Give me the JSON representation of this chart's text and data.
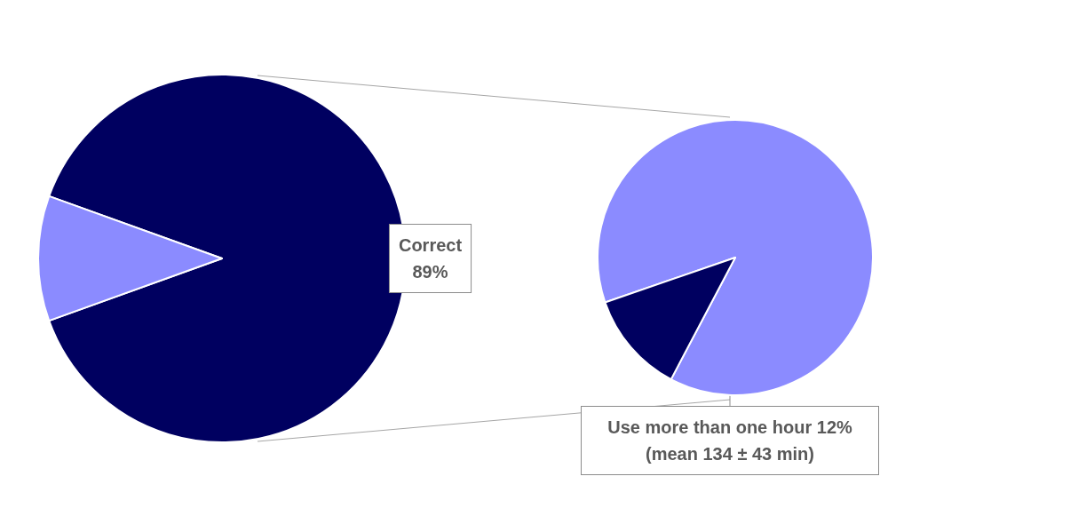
{
  "chart_data": [
    {
      "type": "pie",
      "categories": [
        "Correct",
        null
      ],
      "values": [
        89,
        11
      ],
      "colors": [
        "#000060",
        "#8b8bff"
      ],
      "value_labels": [
        "89%",
        null
      ]
    },
    {
      "type": "pie",
      "categories": [
        null,
        "Use more than one hour"
      ],
      "values": [
        88,
        12
      ],
      "colors": [
        "#8b8bff",
        "#000060"
      ],
      "value_labels": [
        null,
        "12%"
      ],
      "annotations": [
        "(mean 134 ± 43 min)"
      ]
    }
  ]
}
